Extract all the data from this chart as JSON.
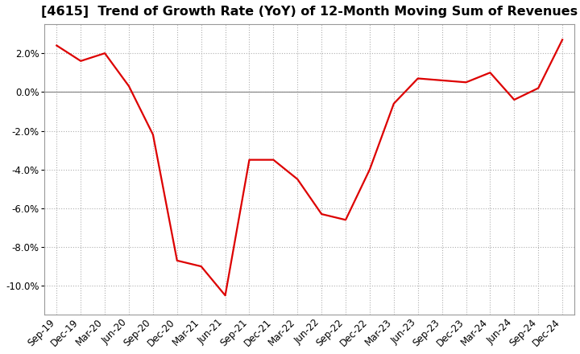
{
  "title": "[4615]  Trend of Growth Rate (YoY) of 12-Month Moving Sum of Revenues",
  "line_color": "#dd0000",
  "background_color": "#ffffff",
  "grid_color": "#b0b0b0",
  "x_labels": [
    "Sep-19",
    "Dec-19",
    "Mar-20",
    "Jun-20",
    "Sep-20",
    "Dec-20",
    "Mar-21",
    "Jun-21",
    "Sep-21",
    "Dec-21",
    "Mar-22",
    "Jun-22",
    "Sep-22",
    "Dec-22",
    "Mar-23",
    "Jun-23",
    "Sep-23",
    "Dec-23",
    "Mar-24",
    "Jun-24",
    "Sep-24",
    "Dec-24"
  ],
  "y_values": [
    2.4,
    1.6,
    2.0,
    0.3,
    -2.2,
    -8.7,
    -9.0,
    -10.5,
    -3.5,
    -3.5,
    -4.5,
    -6.3,
    -6.6,
    -4.0,
    -0.6,
    0.7,
    0.6,
    0.5,
    1.0,
    -0.4,
    0.2,
    2.7
  ],
  "ylim": [
    -11.5,
    3.5
  ],
  "yticks": [
    -10.0,
    -8.0,
    -6.0,
    -4.0,
    -2.0,
    0.0,
    2.0
  ],
  "title_fontsize": 11.5,
  "tick_fontsize": 8.5,
  "line_width": 1.6
}
